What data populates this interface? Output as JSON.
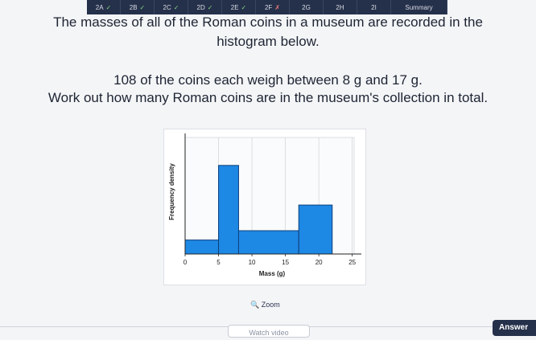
{
  "tabs": [
    {
      "label": "2A",
      "mark": "✓"
    },
    {
      "label": "2B",
      "mark": "✓"
    },
    {
      "label": "2C",
      "mark": "✓"
    },
    {
      "label": "2D",
      "mark": "✓"
    },
    {
      "label": "2E",
      "mark": "✓"
    },
    {
      "label": "2F",
      "mark": "✗"
    },
    {
      "label": "2G"
    },
    {
      "label": "2H"
    },
    {
      "label": "2I"
    },
    {
      "label": "Summary"
    }
  ],
  "question": [
    "The masses of all of the Roman coins in a museum are recorded in the histogram below.",
    "108 of the coins each weigh between 8 g and 17 g.",
    "Work out how many Roman coins are in the museum's collection in total."
  ],
  "chart_data": {
    "type": "histogram",
    "bins": [
      0,
      5,
      8,
      17,
      22
    ],
    "values": [
      1.2,
      7.6,
      2,
      4.2
    ],
    "color": "#1e88e5",
    "xlabel": "Mass (g)",
    "ylabel": "Frequency density",
    "xlim": [
      0,
      26
    ],
    "xticks": [
      0,
      5,
      10,
      15,
      20,
      25
    ],
    "ylim": [
      0,
      10
    ],
    "grid": true
  },
  "zoom": "Zoom",
  "buttons": {
    "watch": "Watch video",
    "answer": "Answer"
  }
}
